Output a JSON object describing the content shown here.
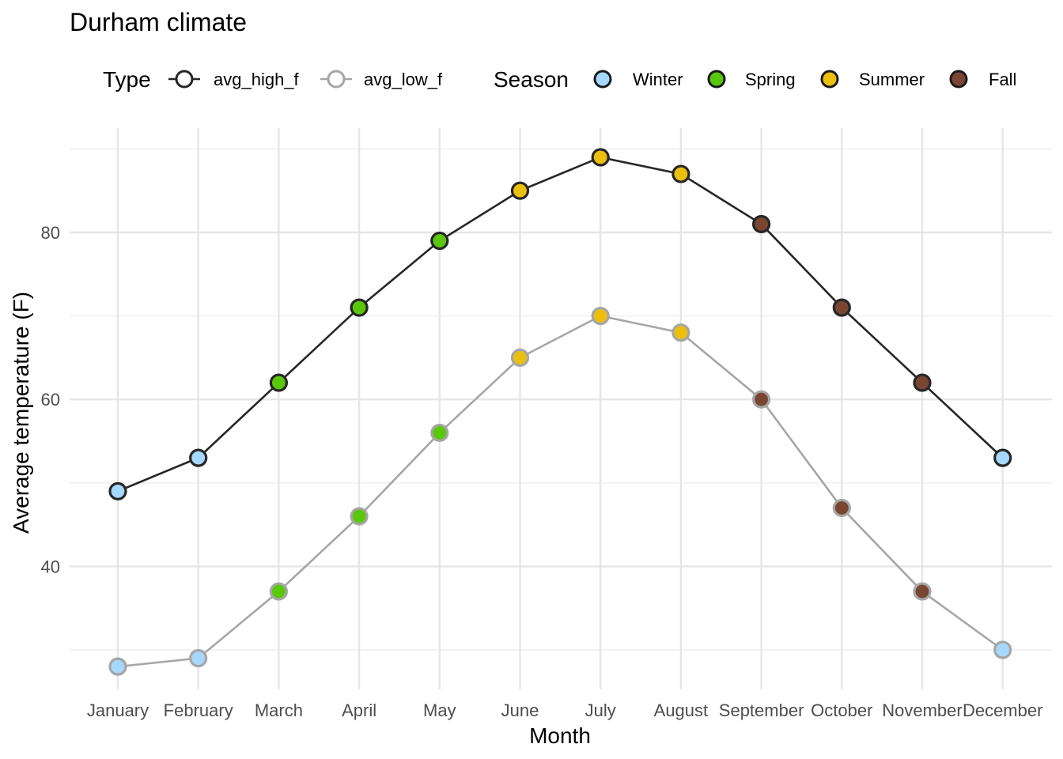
{
  "chart_data": {
    "type": "line",
    "title": "Durham climate",
    "xlabel": "Month",
    "ylabel": "Average temperature (F)",
    "ylim": [
      26,
      91
    ],
    "y_ticks": [
      40,
      60,
      80
    ],
    "grid": true,
    "legend_position": "top",
    "categories": [
      "January",
      "February",
      "March",
      "April",
      "May",
      "June",
      "July",
      "August",
      "September",
      "October",
      "November",
      "December"
    ],
    "series": [
      {
        "name": "avg_high_f",
        "color": "#262626",
        "values": [
          49,
          53,
          62,
          71,
          79,
          85,
          89,
          87,
          81,
          71,
          62,
          53
        ]
      },
      {
        "name": "avg_low_f",
        "color": "#a6a6a6",
        "values": [
          28,
          29,
          37,
          46,
          56,
          65,
          70,
          68,
          60,
          47,
          37,
          30
        ]
      }
    ],
    "season_by_month": [
      "Winter",
      "Winter",
      "Spring",
      "Spring",
      "Spring",
      "Summer",
      "Summer",
      "Summer",
      "Fall",
      "Fall",
      "Fall",
      "Winter"
    ],
    "legends": {
      "type": {
        "title": "Type",
        "items": [
          "avg_high_f",
          "avg_low_f"
        ]
      },
      "season": {
        "title": "Season",
        "items": [
          {
            "label": "Winter",
            "color": "#a6d8ff"
          },
          {
            "label": "Spring",
            "color": "#5ac80a"
          },
          {
            "label": "Summer",
            "color": "#ecbf0f"
          },
          {
            "label": "Fall",
            "color": "#7b4533"
          }
        ]
      }
    }
  }
}
